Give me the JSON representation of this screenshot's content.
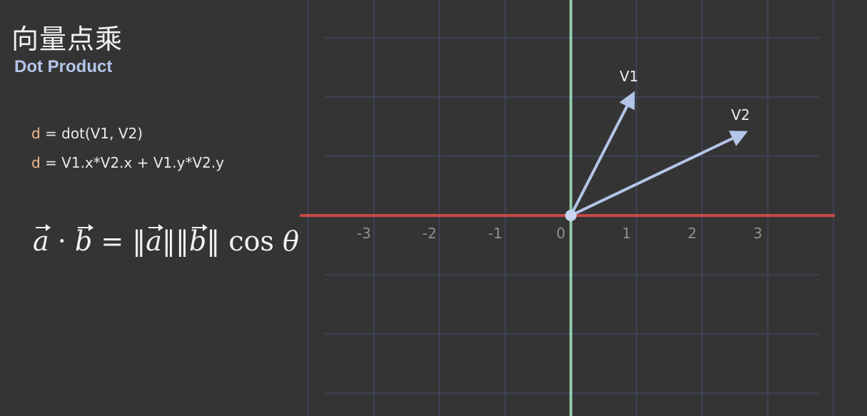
{
  "title": {
    "zh": "向量点乘",
    "en": "Dot Product"
  },
  "formulas": {
    "line1_var": "d",
    "line1_rest": " = dot(V1, V2)",
    "line2_var": "d",
    "line2_rest": " = V1.x*V2.x + V1.y*V2.y"
  },
  "equation": {
    "a": "a",
    "dot": "·",
    "b": "b",
    "equals": "=",
    "norm": "‖",
    "cos": "cos",
    "theta": "θ"
  },
  "plot": {
    "x_ticks": [
      -3,
      -2,
      -1,
      0,
      1,
      2,
      3
    ],
    "vectors": [
      {
        "label": "V1",
        "x": 0.95,
        "y": 2.05
      },
      {
        "label": "V2",
        "x": 2.65,
        "y": 1.4
      }
    ],
    "colors": {
      "grid": "#4a5b8c",
      "x_axis": "#c84a48",
      "y_axis": "#8dc7a6",
      "vector": "#b3c5e8",
      "origin_dot": "#c9d4ee"
    }
  }
}
